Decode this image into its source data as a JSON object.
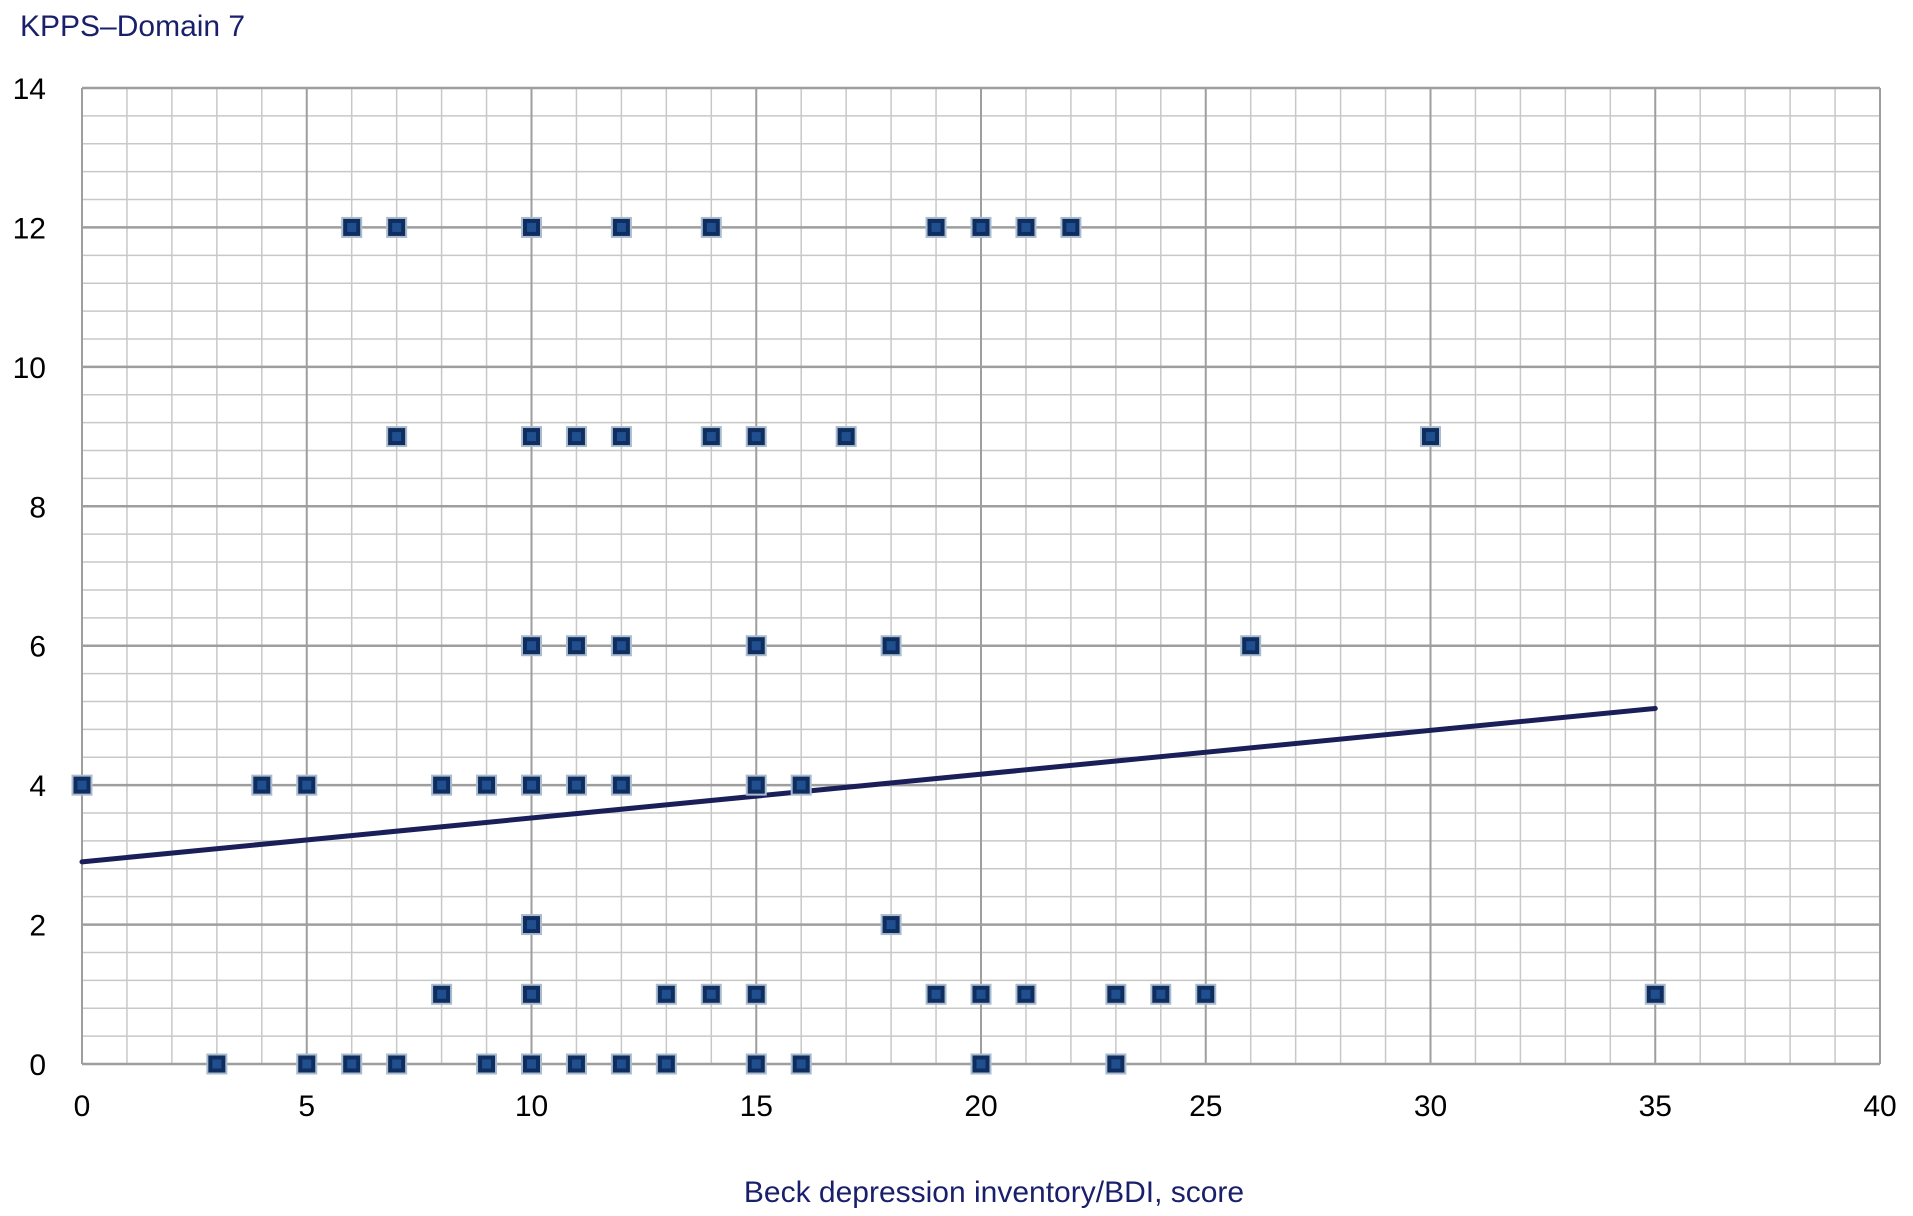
{
  "colors": {
    "marker": "#0f2d5e",
    "marker_inner": "#1f4f8f",
    "marker_border": "#a9bccf",
    "trendline": "#1a1f5a",
    "axis_title": "#1a1f6b",
    "grid_major": "#9e9e9e",
    "grid_minor": "#c8c8c8"
  },
  "chart_data": {
    "type": "scatter",
    "title": "",
    "xlabel": "Beck depression inventory/BDI, score",
    "ylabel": "KPPS–Domain 7",
    "xlim": [
      0,
      40
    ],
    "ylim": [
      0,
      14
    ],
    "x_ticks": [
      0,
      5,
      10,
      15,
      20,
      25,
      30,
      35,
      40
    ],
    "y_ticks": [
      0,
      2,
      4,
      6,
      8,
      10,
      12,
      14
    ],
    "x_minor_step": 1,
    "y_minor_step": 0.4,
    "grid": true,
    "legend": "none",
    "series": [
      {
        "marker": "square",
        "points": [
          [
            6,
            12
          ],
          [
            7,
            12
          ],
          [
            10,
            12
          ],
          [
            12,
            12
          ],
          [
            14,
            12
          ],
          [
            19,
            12
          ],
          [
            20,
            12
          ],
          [
            21,
            12
          ],
          [
            22,
            12
          ],
          [
            7,
            9
          ],
          [
            10,
            9
          ],
          [
            11,
            9
          ],
          [
            12,
            9
          ],
          [
            14,
            9
          ],
          [
            15,
            9
          ],
          [
            17,
            9
          ],
          [
            30,
            9
          ],
          [
            10,
            6
          ],
          [
            11,
            6
          ],
          [
            12,
            6
          ],
          [
            15,
            6
          ],
          [
            18,
            6
          ],
          [
            26,
            6
          ],
          [
            0,
            4
          ],
          [
            4,
            4
          ],
          [
            5,
            4
          ],
          [
            8,
            4
          ],
          [
            9,
            4
          ],
          [
            10,
            4
          ],
          [
            11,
            4
          ],
          [
            12,
            4
          ],
          [
            15,
            4
          ],
          [
            16,
            4
          ],
          [
            10,
            2
          ],
          [
            18,
            2
          ],
          [
            8,
            1
          ],
          [
            10,
            1
          ],
          [
            13,
            1
          ],
          [
            14,
            1
          ],
          [
            15,
            1
          ],
          [
            19,
            1
          ],
          [
            20,
            1
          ],
          [
            21,
            1
          ],
          [
            23,
            1
          ],
          [
            24,
            1
          ],
          [
            25,
            1
          ],
          [
            35,
            1
          ],
          [
            3,
            0
          ],
          [
            5,
            0
          ],
          [
            6,
            0
          ],
          [
            7,
            0
          ],
          [
            9,
            0
          ],
          [
            10,
            0
          ],
          [
            11,
            0
          ],
          [
            12,
            0
          ],
          [
            13,
            0
          ],
          [
            15,
            0
          ],
          [
            16,
            0
          ],
          [
            20,
            0
          ],
          [
            23,
            0
          ]
        ]
      }
    ],
    "trendline": {
      "type": "linear",
      "points": [
        [
          0,
          2.9
        ],
        [
          35,
          5.1
        ]
      ]
    }
  }
}
